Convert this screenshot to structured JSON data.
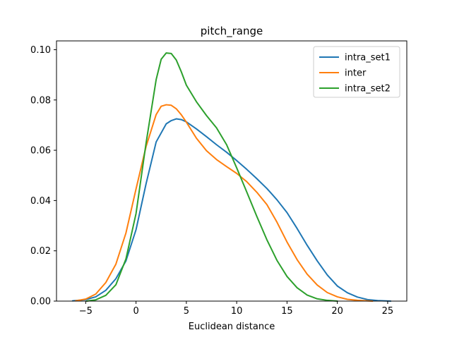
{
  "chart_data": {
    "type": "line",
    "title": "pitch_range",
    "xlabel": "Euclidean distance",
    "ylabel": "",
    "xlim": [
      -7.9,
      26.9
    ],
    "ylim": [
      0,
      0.1035
    ],
    "xticks": [
      -5,
      0,
      5,
      10,
      15,
      20,
      25
    ],
    "xtick_labels": [
      "−5",
      "0",
      "5",
      "10",
      "15",
      "20",
      "25"
    ],
    "yticks": [
      0.0,
      0.02,
      0.04,
      0.06,
      0.08,
      0.1
    ],
    "ytick_labels": [
      "0.00",
      "0.02",
      "0.04",
      "0.06",
      "0.08",
      "0.10"
    ],
    "grid": false,
    "legend_position": "top-right",
    "series": [
      {
        "name": "intra_set1",
        "color": "#1f77b4",
        "x": [
          -6.3,
          -5,
          -4,
          -3,
          -2,
          -1,
          0,
          1,
          2,
          3,
          3.5,
          4,
          4.5,
          5,
          6,
          7,
          8,
          9,
          10,
          11,
          12,
          13,
          14,
          15,
          16,
          17,
          18,
          19,
          20,
          21,
          22,
          23,
          24,
          25.3
        ],
        "y": [
          0.0001,
          0.0006,
          0.0017,
          0.0043,
          0.0089,
          0.016,
          0.0284,
          0.0467,
          0.0633,
          0.0705,
          0.0718,
          0.0725,
          0.0722,
          0.0713,
          0.0685,
          0.0654,
          0.0622,
          0.0592,
          0.0559,
          0.0524,
          0.0487,
          0.0448,
          0.0403,
          0.0352,
          0.0289,
          0.0222,
          0.016,
          0.0104,
          0.006,
          0.0033,
          0.0016,
          0.0006,
          0.0002,
          0.0
        ]
      },
      {
        "name": "inter",
        "color": "#ff7f0e",
        "x": [
          -6.0,
          -5,
          -4,
          -3,
          -2,
          -1,
          0,
          1,
          2,
          2.5,
          3,
          3.5,
          4,
          4.5,
          5,
          6,
          7,
          8,
          9,
          10,
          11,
          12,
          13,
          14,
          15,
          16,
          17,
          18,
          19,
          20,
          21,
          22,
          23.5
        ],
        "y": [
          0.0001,
          0.0008,
          0.0028,
          0.0074,
          0.0147,
          0.0271,
          0.0446,
          0.0615,
          0.0742,
          0.0775,
          0.0781,
          0.0779,
          0.0765,
          0.0741,
          0.0712,
          0.0648,
          0.0598,
          0.0563,
          0.0535,
          0.0508,
          0.0475,
          0.0433,
          0.0384,
          0.0314,
          0.0235,
          0.0165,
          0.0107,
          0.0064,
          0.0034,
          0.0017,
          0.0007,
          0.0003,
          0.0
        ]
      },
      {
        "name": "intra_set2",
        "color": "#2ca02c",
        "x": [
          -4.9,
          -4,
          -3,
          -2,
          -1,
          0,
          1,
          2,
          2.5,
          3,
          3.5,
          4,
          4.5,
          5,
          6,
          7,
          8,
          9,
          10,
          11,
          12,
          13,
          14,
          15,
          16,
          17,
          18,
          19,
          20.0
        ],
        "y": [
          0.0,
          0.0005,
          0.0023,
          0.0065,
          0.0168,
          0.0348,
          0.0629,
          0.0881,
          0.0962,
          0.0987,
          0.0985,
          0.0959,
          0.0912,
          0.0859,
          0.0793,
          0.0738,
          0.0689,
          0.0622,
          0.053,
          0.0434,
          0.0337,
          0.0244,
          0.0162,
          0.0098,
          0.0053,
          0.0024,
          0.0009,
          0.0003,
          0.0
        ]
      }
    ]
  }
}
